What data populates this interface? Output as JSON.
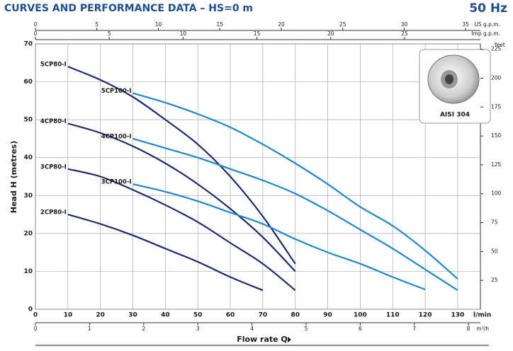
{
  "chart_data": {
    "type": "line",
    "title": "CURVES AND PERFORMANCE DATA – HS=0 m",
    "frequency": "50 Hz",
    "xlabel": "Flow rate Q",
    "xunit": "l/min",
    "ylabel": "Head H (metres)",
    "y2label": "feet",
    "inset_label": "AISI 304",
    "xlim": [
      0,
      137
    ],
    "xticks": [
      0,
      10,
      20,
      30,
      40,
      50,
      60,
      70,
      80,
      90,
      100,
      110,
      120,
      130
    ],
    "ylim": [
      0,
      70
    ],
    "yticks": [
      0,
      10,
      20,
      30,
      40,
      50,
      60,
      70
    ],
    "y2lim": [
      0,
      229.7
    ],
    "y2ticks": [
      25,
      50,
      75,
      100,
      125,
      150,
      175,
      200,
      225
    ],
    "grid": true,
    "top_axes": [
      {
        "label": "US g.p.m.",
        "lim": [
          0,
          36.2
        ],
        "ticks": [
          0,
          5,
          10,
          15,
          20,
          25,
          30,
          35
        ]
      },
      {
        "label": "Imp g.p.m.",
        "lim": [
          0,
          30.14
        ],
        "ticks": [
          0,
          5,
          10,
          15,
          20,
          25
        ]
      }
    ],
    "bottom_axis2": {
      "label": "m³/h",
      "lim": [
        0,
        8.22
      ],
      "ticks": [
        0,
        1,
        2,
        3,
        4,
        5,
        6,
        7,
        8
      ]
    },
    "series": [
      {
        "name": "5CP80-I",
        "color": "#1f2d6b",
        "x": [
          10,
          20,
          30,
          40,
          50,
          60,
          70,
          80
        ],
        "values": [
          64,
          60.5,
          56,
          50,
          43.5,
          35,
          24.5,
          12
        ]
      },
      {
        "name": "4CP80-I",
        "color": "#1f2d6b",
        "x": [
          10,
          20,
          30,
          40,
          50,
          60,
          70,
          80
        ],
        "values": [
          49,
          46.5,
          43,
          38.5,
          33,
          26.5,
          19,
          10
        ]
      },
      {
        "name": "3CP80-I",
        "color": "#1f2d6b",
        "x": [
          10,
          20,
          30,
          40,
          50,
          60,
          70,
          80
        ],
        "values": [
          37,
          35,
          31.5,
          27.5,
          23,
          17.5,
          12,
          5
        ]
      },
      {
        "name": "2CP80-I",
        "color": "#1f2d6b",
        "x": [
          10,
          20,
          30,
          40,
          50,
          60,
          70
        ],
        "values": [
          25,
          22.5,
          19.5,
          16,
          12.5,
          8.5,
          5
        ]
      },
      {
        "name": "5CP100-I",
        "color": "#1e88c8",
        "x": [
          30,
          40,
          50,
          60,
          70,
          80,
          90,
          100,
          110,
          120,
          130
        ],
        "values": [
          57,
          54.5,
          51.5,
          48,
          43.5,
          38.5,
          33,
          27,
          22,
          15.5,
          8
        ]
      },
      {
        "name": "4CP100-I",
        "color": "#1e88c8",
        "x": [
          30,
          40,
          50,
          60,
          70,
          80,
          90,
          100,
          110,
          120,
          130
        ],
        "values": [
          45,
          42.5,
          40,
          37,
          34,
          30.5,
          26,
          21,
          16,
          10.5,
          5
        ]
      },
      {
        "name": "3CP100-I",
        "color": "#1e88c8",
        "x": [
          30,
          40,
          50,
          60,
          70,
          80,
          90,
          100,
          110,
          120
        ],
        "values": [
          33,
          31,
          28.5,
          25.5,
          22.5,
          18.5,
          15,
          12,
          8.5,
          5.2
        ]
      }
    ]
  }
}
